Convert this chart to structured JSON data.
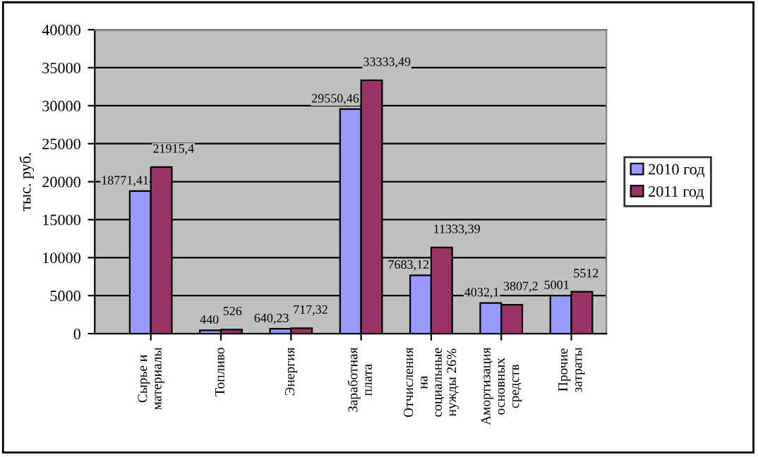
{
  "chart_data": {
    "type": "bar",
    "ylabel": "тыс. руб.",
    "categories": [
      "Сырье и\nматериалы",
      "Топливо",
      "Энергия",
      "Заработная\nплата",
      "Отчисления\nна\nсоциальные\nнужды 26%",
      "Амортизация\nосновных\nсредств",
      "Прочие\nзатраты"
    ],
    "series": [
      {
        "name": "2010 год",
        "color": "#9999ff",
        "values": [
          18771.41,
          440,
          640.23,
          29550.46,
          7683.12,
          4032.1,
          5001
        ],
        "value_labels": [
          "18771,41",
          "440",
          "640,23",
          "29550,46",
          "7683,12",
          "4032,1",
          "5001"
        ]
      },
      {
        "name": "2011 год",
        "color": "#993366",
        "values": [
          21915.4,
          526,
          717.32,
          33333.49,
          11333.39,
          3807.2,
          5512
        ],
        "value_labels": [
          "21915,4",
          "526",
          "717,32",
          "33333,49",
          "11333,39",
          "3807,2",
          "5512"
        ]
      }
    ],
    "ylim": [
      0,
      40000
    ],
    "yticks": [
      0,
      5000,
      10000,
      15000,
      20000,
      25000,
      30000,
      35000,
      40000
    ],
    "grid": "y",
    "legend": "right"
  }
}
